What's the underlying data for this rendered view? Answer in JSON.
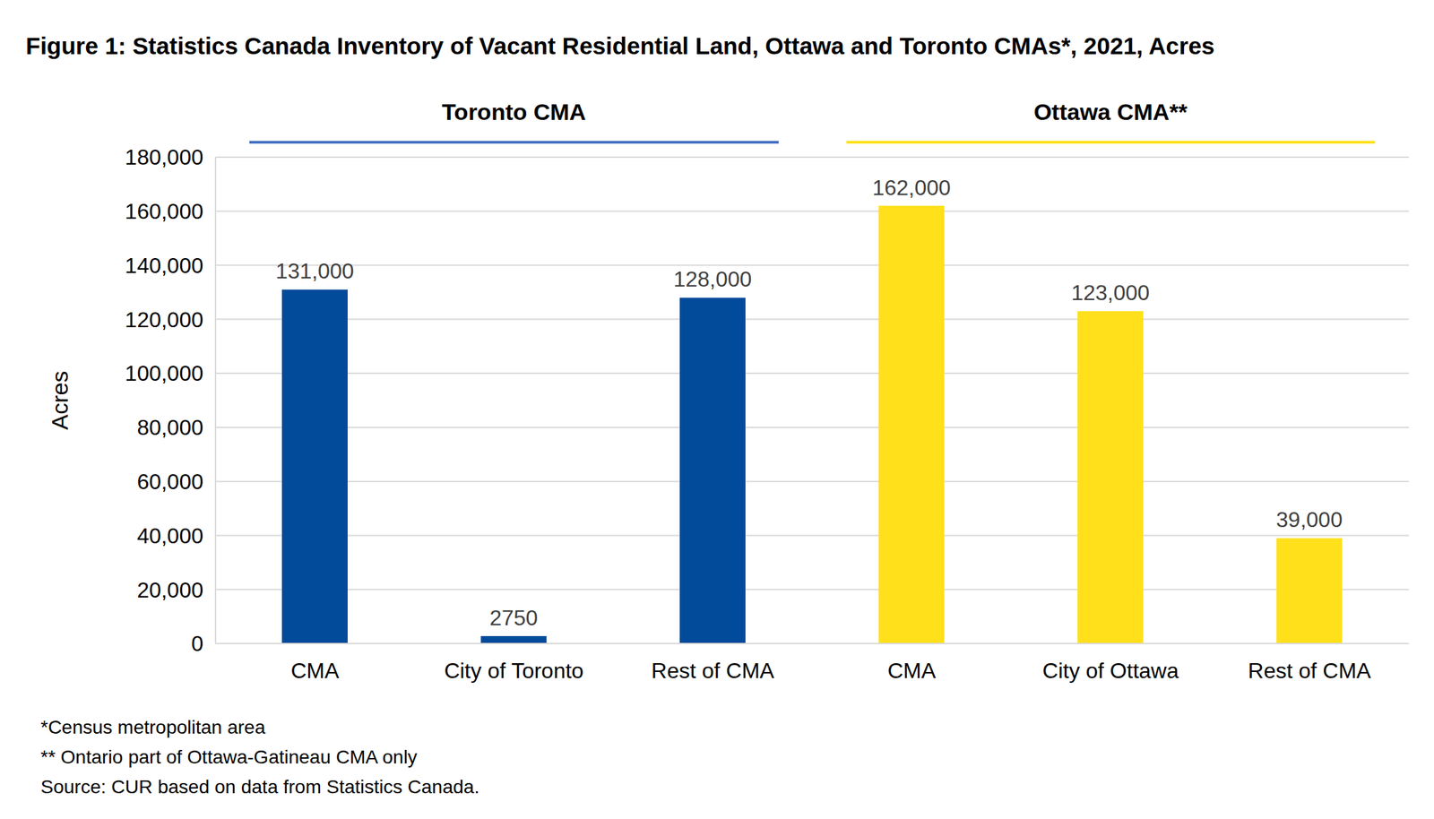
{
  "chart_data": {
    "type": "bar",
    "title": "Figure 1: Statistics Canada Inventory of Vacant Residential Land, Ottawa and Toronto CMAs*, 2021, Acres",
    "categories": [
      "CMA",
      "City of Toronto",
      "Rest of CMA",
      "CMA",
      "City of Ottawa",
      "Rest of CMA"
    ],
    "values": [
      131000,
      2750,
      128000,
      162000,
      123000,
      39000
    ],
    "value_labels": [
      "131,000",
      "2750",
      "128,000",
      "162,000",
      "123,000",
      "39,000"
    ],
    "colors": [
      "#024A9A",
      "#024A9A",
      "#024A9A",
      "#FFE01B",
      "#FFE01B",
      "#FFE01B"
    ],
    "y_label": "Acres",
    "ylim": [
      0,
      180000
    ],
    "yticks": [
      0,
      {
        "value": 20000,
        "label": "20,000"
      },
      {
        "value": 40000,
        "label": "40,000"
      },
      {
        "value": 60000,
        "label": "60,000"
      },
      {
        "value": 80000,
        "label": "80,000"
      },
      {
        "value": 100000,
        "label": "100,000"
      },
      {
        "value": 120000,
        "label": "120,000"
      },
      {
        "value": 140000,
        "label": "140,000"
      },
      {
        "value": 160000,
        "label": "160,000"
      },
      {
        "value": 180000,
        "label": "180,000"
      }
    ],
    "grid": true,
    "data_labels": true,
    "groups": [
      {
        "name": "Toronto CMA",
        "color": "#4472C4"
      },
      {
        "name": "Ottawa CMA**",
        "color": "#FFE01B"
      }
    ],
    "notes": [
      "*Census metropolitan area",
      "** Ontario part of Ottawa-Gatineau CMA only",
      "Source: CUR based on data from Statistics Canada."
    ]
  }
}
